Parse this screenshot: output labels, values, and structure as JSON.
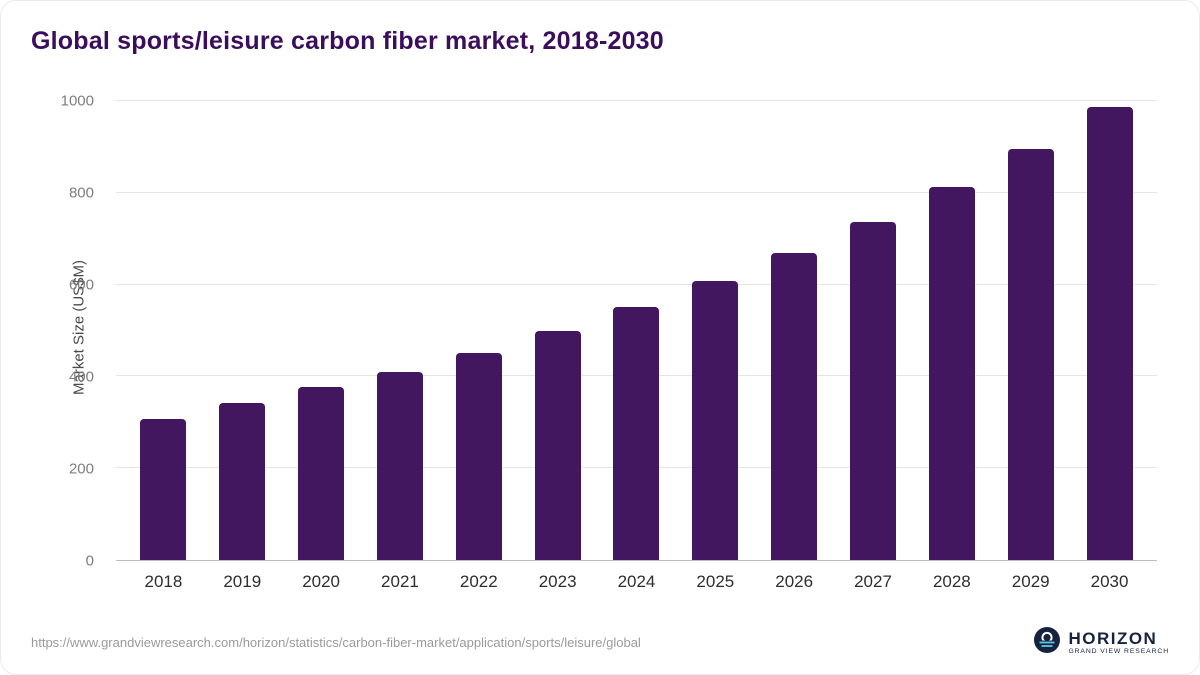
{
  "title": "Global sports/leisure carbon fiber market, 2018-2030",
  "colors": {
    "title": "#3a0d5d",
    "bar": "#421760",
    "grid": "#e4e4e4"
  },
  "chart_data": {
    "type": "bar",
    "title": "Global sports/leisure carbon fiber market, 2018-2030",
    "categories": [
      "2018",
      "2019",
      "2020",
      "2021",
      "2022",
      "2023",
      "2024",
      "2025",
      "2026",
      "2027",
      "2028",
      "2029",
      "2030"
    ],
    "values": [
      307,
      342,
      376,
      410,
      452,
      500,
      551,
      607,
      668,
      737,
      812,
      895,
      987
    ],
    "xlabel": "",
    "ylabel": "Market Size (US$M)",
    "ylim": [
      0,
      1000
    ],
    "yticks": [
      0,
      200,
      400,
      600,
      800,
      1000
    ],
    "grid": true,
    "legend": "none",
    "bar_color": "#421760"
  },
  "footer": {
    "source_url": "https://www.grandviewresearch.com/horizon/statistics/carbon-fiber-market/application/sports/leisure/global",
    "logo_name": "HORIZON",
    "logo_subtitle": "GRAND VIEW RESEARCH"
  }
}
